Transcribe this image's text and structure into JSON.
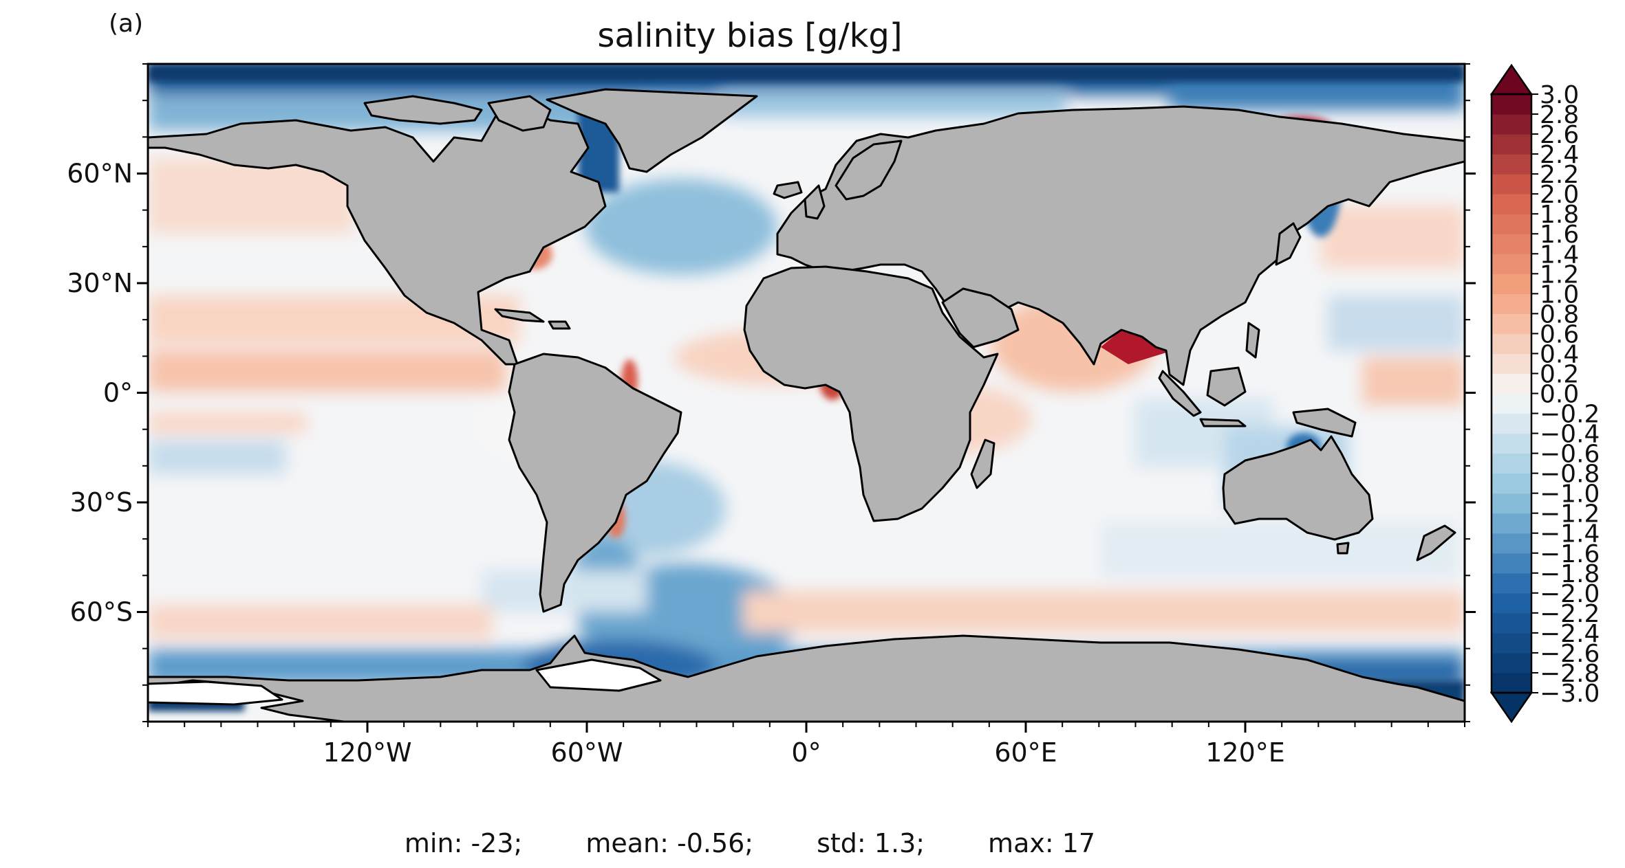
{
  "panel_label": "(a)",
  "title": "salinity bias [g/kg]",
  "map": {
    "projection": "PlateCarree",
    "lon_range": [
      -180,
      180
    ],
    "lat_range": [
      -90,
      90
    ],
    "land_color": "#b3b3b3",
    "coastline_color": "#000000",
    "ocean_palette": "RdBu_r",
    "lon_ticks": [
      {
        "lon": -120,
        "label": "120°W"
      },
      {
        "lon": -60,
        "label": "60°W"
      },
      {
        "lon": 0,
        "label": "0°"
      },
      {
        "lon": 60,
        "label": "60°E"
      },
      {
        "lon": 120,
        "label": "120°E"
      }
    ],
    "lat_ticks": [
      {
        "lat": 60,
        "label": "60°N"
      },
      {
        "lat": 30,
        "label": "30°N"
      },
      {
        "lat": 0,
        "label": "0°"
      },
      {
        "lat": -30,
        "label": "30°S"
      },
      {
        "lat": -60,
        "label": "60°S"
      }
    ],
    "minor_tick_step_deg": 10
  },
  "colorbar": {
    "min": -3.0,
    "max": 3.0,
    "step": 0.2,
    "extend": "both",
    "colors": {
      "neg3": "#053061",
      "neg2": "#2166ac",
      "neg1": "#92c5de",
      "neg0": "#f7f7f7",
      "pos1": "#f4a582",
      "pos2": "#d6604d",
      "pos3": "#67001f"
    },
    "tick_labels": [
      "3.0",
      "2.8",
      "2.6",
      "2.4",
      "2.2",
      "2.0",
      "1.8",
      "1.6",
      "1.4",
      "1.2",
      "1.0",
      "0.8",
      "0.6",
      "0.4",
      "0.2",
      "0.0",
      "−0.2",
      "−0.4",
      "−0.6",
      "−0.8",
      "−1.0",
      "−1.2",
      "−1.4",
      "−1.6",
      "−1.8",
      "−2.0",
      "−2.2",
      "−2.4",
      "−2.6",
      "−2.8",
      "−3.0"
    ]
  },
  "stats": {
    "min": "min: -23;",
    "mean": "mean: -0.56;",
    "std": "std: 1.3;",
    "max": "max: 17"
  }
}
